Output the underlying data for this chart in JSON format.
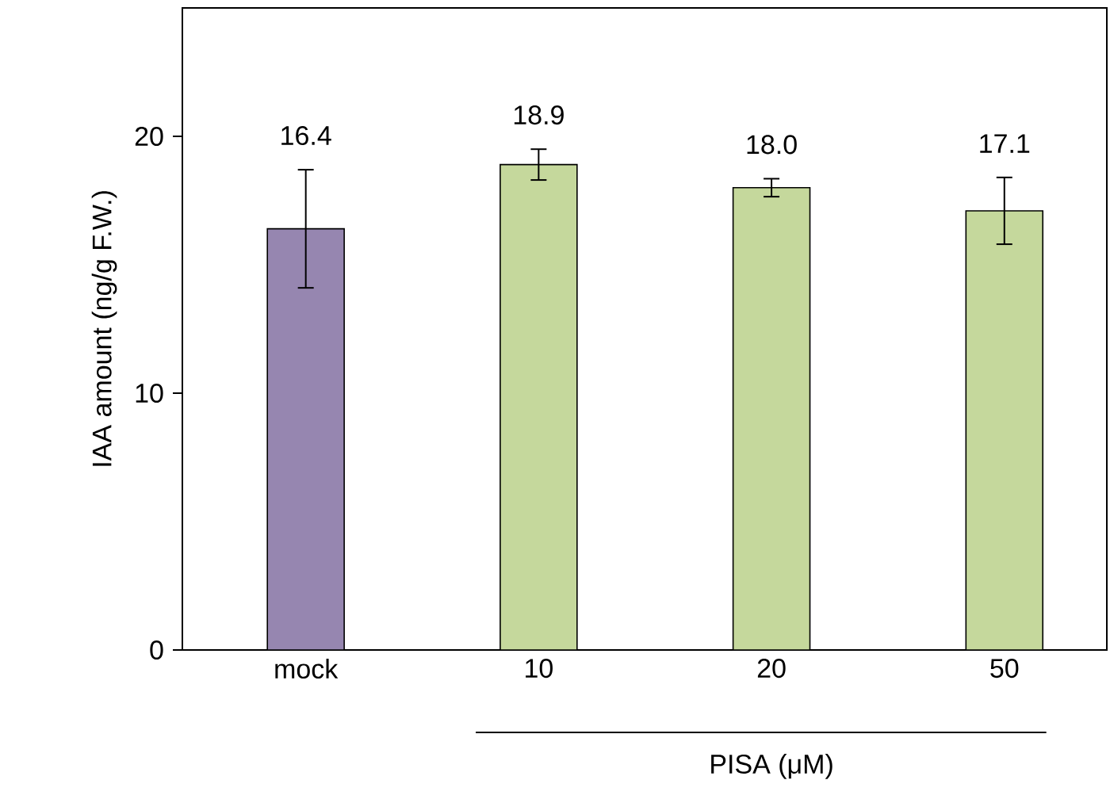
{
  "chart_data": {
    "type": "bar",
    "categories": [
      "mock",
      "10",
      "20",
      "50"
    ],
    "values": [
      16.4,
      18.9,
      18.0,
      17.1
    ],
    "colors": [
      "#9686b0",
      "#c5d89c",
      "#c5d89c",
      "#c5d89c"
    ],
    "errors": [
      2.3,
      0.6,
      0.35,
      1.3
    ],
    "value_labels": [
      "16.4",
      "18.9",
      "18.0",
      "17.1"
    ],
    "ylabel": "IAA amount (ng/g F.W.)",
    "xlabel": "PISA (μM)",
    "ylim": [
      0,
      25
    ],
    "yticks": [
      0,
      10,
      20
    ]
  }
}
